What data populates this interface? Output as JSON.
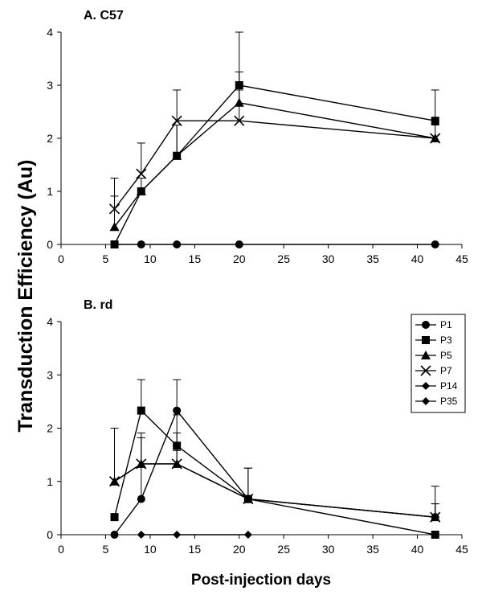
{
  "chart_data": {
    "type": "line",
    "ylabel": "Transduction Efficiency (Au)",
    "xlabel": "Post-injection days",
    "legend": {
      "placement": "right-of-panel-B-top",
      "entries": [
        {
          "name": "P1",
          "marker": "circle"
        },
        {
          "name": "P3",
          "marker": "square"
        },
        {
          "name": "P5",
          "marker": "triangle"
        },
        {
          "name": "P7",
          "marker": "x"
        },
        {
          "name": "P14",
          "marker": "diamond"
        },
        {
          "name": "P35",
          "marker": "diamond"
        }
      ]
    },
    "panels": [
      {
        "title": "A. C57",
        "xlim": [
          0,
          45
        ],
        "ylim": [
          0,
          4
        ],
        "xticks": [
          "0",
          "5",
          "10",
          "15",
          "20",
          "25",
          "30",
          "35",
          "40",
          "45"
        ],
        "yticks": [
          "0",
          "1",
          "2",
          "3",
          "4"
        ],
        "series": [
          {
            "name": "P1",
            "marker": "circle",
            "x": [
              6,
              9,
              13,
              20,
              42
            ],
            "y": [
              0,
              0,
              0,
              0,
              0
            ],
            "err": [
              0,
              0,
              0,
              0,
              0
            ]
          },
          {
            "name": "P3",
            "marker": "square",
            "x": [
              6,
              9,
              13,
              20,
              42
            ],
            "y": [
              0,
              1,
              1.67,
              3,
              2.33
            ],
            "err": [
              0,
              0.25,
              0.58,
              1,
              0.58
            ]
          },
          {
            "name": "P5",
            "marker": "triangle",
            "x": [
              6,
              9,
              13,
              20,
              42
            ],
            "y": [
              0.33,
              1,
              1.67,
              2.67,
              2
            ],
            "err": [
              0.58,
              0,
              0.58,
              0.58,
              0
            ]
          },
          {
            "name": "P7",
            "marker": "x",
            "x": [
              6,
              9,
              13,
              20,
              42
            ],
            "y": [
              0.67,
              1.33,
              2.33,
              2.33,
              2
            ],
            "err": [
              0.58,
              0.58,
              0.58,
              0.58,
              0.25
            ]
          }
        ]
      },
      {
        "title": "B. rd",
        "xlim": [
          0,
          45
        ],
        "ylim": [
          0,
          4
        ],
        "xticks": [
          "0",
          "5",
          "10",
          "15",
          "20",
          "25",
          "30",
          "35",
          "40",
          "45"
        ],
        "yticks": [
          "0",
          "1",
          "2",
          "3",
          "4"
        ],
        "series": [
          {
            "name": "P1",
            "marker": "circle",
            "x": [
              6,
              9,
              13,
              21,
              42
            ],
            "y": [
              0,
              0.67,
              2.33,
              0.67,
              0.33
            ],
            "err": [
              0,
              1.15,
              0.58,
              0.58,
              0.58
            ]
          },
          {
            "name": "P3",
            "marker": "square",
            "x": [
              6,
              9,
              13,
              21,
              42
            ],
            "y": [
              0.33,
              2.33,
              1.67,
              0.67,
              0
            ],
            "err": [
              0,
              0.58,
              0.58,
              0.58,
              0
            ]
          },
          {
            "name": "P5",
            "marker": "triangle",
            "x": [
              6,
              9,
              13,
              21,
              42
            ],
            "y": [
              1,
              1.33,
              1.33,
              0.67,
              0.33
            ],
            "err": [
              1,
              0.58,
              0.58,
              0,
              0.25
            ]
          },
          {
            "name": "P7",
            "marker": "x",
            "x": [
              6,
              9,
              13,
              21,
              42
            ],
            "y": [
              1,
              1.33,
              1.33,
              0.67,
              0.33
            ],
            "err": [
              0,
              0,
              0.25,
              0,
              0.25
            ]
          },
          {
            "name": "P14",
            "marker": "diamond",
            "x": [
              9,
              13,
              21
            ],
            "y": [
              0,
              0,
              0
            ],
            "err": [
              0,
              0,
              0
            ]
          }
        ]
      }
    ]
  }
}
